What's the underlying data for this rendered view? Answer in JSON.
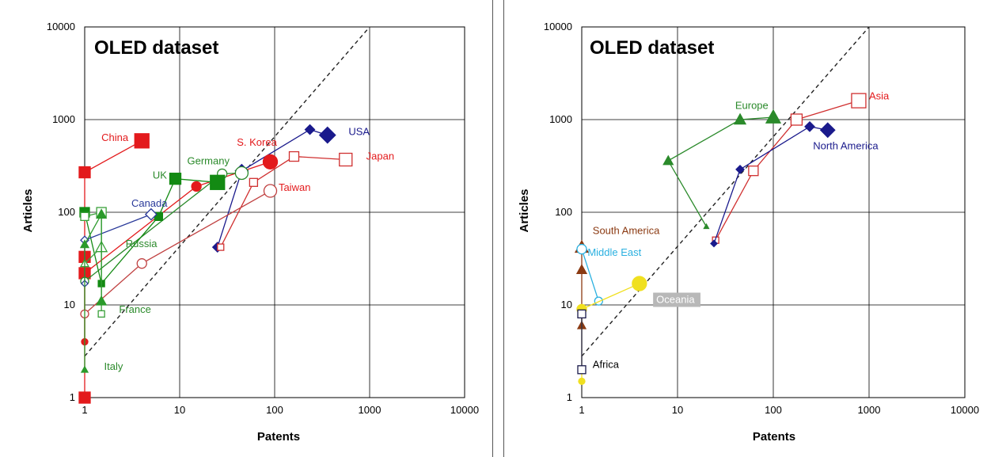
{
  "chart_data": [
    {
      "type": "scatter",
      "title": "OLED dataset",
      "xlabel": "Patents",
      "ylabel": "Articles",
      "xscale": "log",
      "yscale": "log",
      "xlim": [
        1,
        10000
      ],
      "ylim": [
        1,
        10000
      ],
      "x_ticks": [
        "1",
        "10",
        "100",
        "1000",
        "10000"
      ],
      "y_ticks": [
        "1",
        "10",
        "100",
        "1000",
        "10000"
      ],
      "grid": true,
      "reference_line": {
        "type": "diagonal",
        "style": "dashed",
        "points": [
          [
            1,
            2.8
          ],
          [
            1000,
            10000
          ]
        ]
      },
      "series": [
        {
          "name": "USA",
          "color": "#1a1a8c",
          "marker": "diamond",
          "filled": true,
          "points": [
            [
              25,
              42
            ],
            [
              45,
              280
            ],
            [
              235,
              780
            ],
            [
              360,
              680
            ]
          ]
        },
        {
          "name": "China",
          "color": "#e31a1c",
          "marker": "square",
          "filled": true,
          "points": [
            [
              1,
              1
            ],
            [
              1,
              22
            ],
            [
              1,
              33
            ],
            [
              1,
              270
            ],
            [
              4,
              590
            ]
          ]
        },
        {
          "name": "S. Korea",
          "color": "#e31a1c",
          "marker": "circle",
          "filled": true,
          "points": [
            [
              1,
              4
            ],
            [
              1,
              22
            ],
            [
              15,
              190
            ],
            [
              90,
              350
            ]
          ]
        },
        {
          "name": "Japan",
          "color": "#d03030",
          "marker": "square",
          "filled": false,
          "points": [
            [
              27,
              42
            ],
            [
              60,
              210
            ],
            [
              160,
              400
            ],
            [
              560,
              370
            ]
          ]
        },
        {
          "name": "Taiwan",
          "color": "#c04040",
          "marker": "circle",
          "filled": false,
          "points": [
            [
              1,
              8
            ],
            [
              4,
              28
            ],
            [
              90,
              170
            ]
          ]
        },
        {
          "name": "Germany",
          "color": "#2b8a2b",
          "marker": "circle",
          "filled": false,
          "points": [
            [
              1,
              18
            ],
            [
              28,
              260
            ],
            [
              45,
              265
            ]
          ]
        },
        {
          "name": "UK",
          "color": "#138a13",
          "marker": "square",
          "filled": true,
          "points": [
            [
              1,
              100
            ],
            [
              1.5,
              17
            ],
            [
              6,
              90
            ],
            [
              9,
              230
            ],
            [
              25,
              210
            ]
          ]
        },
        {
          "name": "Canada",
          "color": "#2a3a9a",
          "marker": "diamond",
          "filled": false,
          "points": [
            [
              1,
              17
            ],
            [
              1,
              50
            ],
            [
              5,
              95
            ]
          ]
        },
        {
          "name": "Russia",
          "color": "#3aa03a",
          "marker": "triangle",
          "filled": false,
          "points": [
            [
              1,
              28
            ],
            [
              1.5,
              42
            ]
          ]
        },
        {
          "name": "France",
          "color": "#3aa03a",
          "marker": "square",
          "filled": false,
          "points": [
            [
              1,
              90
            ],
            [
              1.5,
              100
            ],
            [
              1.5,
              8
            ]
          ]
        },
        {
          "name": "Italy",
          "color": "#2b9a2b",
          "marker": "triangle",
          "filled": true,
          "points": [
            [
              1,
              2
            ],
            [
              1,
              45
            ],
            [
              1.5,
              95
            ],
            [
              1.5,
              11
            ]
          ]
        }
      ],
      "labels": [
        {
          "text": "USA",
          "x": 600,
          "y": 680,
          "color": "#1a1a8c"
        },
        {
          "text": "China",
          "x": 1.5,
          "y": 590,
          "color": "#e31a1c"
        },
        {
          "text": "S. Korea",
          "x": 40,
          "y": 520,
          "color": "#e31a1c"
        },
        {
          "text": "Germany",
          "x": 12,
          "y": 330,
          "color": "#2b8a2b"
        },
        {
          "text": "Japan",
          "x": 920,
          "y": 370,
          "color": "#e31a1c"
        },
        {
          "text": "UK",
          "x": 5.2,
          "y": 230,
          "color": "#2b8a2b"
        },
        {
          "text": "Canada",
          "x": 3.1,
          "y": 115,
          "color": "#2a3a9a"
        },
        {
          "text": "Taiwan",
          "x": 110,
          "y": 170,
          "color": "#e31a1c"
        },
        {
          "text": "Russia",
          "x": 2.7,
          "y": 42,
          "color": "#2b8a2b"
        },
        {
          "text": "France",
          "x": 2.3,
          "y": 8.2,
          "color": "#2b8a2b"
        },
        {
          "text": "Italy",
          "x": 1.6,
          "y": 2.0,
          "color": "#2b8a2b"
        }
      ]
    },
    {
      "type": "scatter",
      "title": "OLED dataset",
      "xlabel": "Patents",
      "ylabel": "Articles",
      "xscale": "log",
      "yscale": "log",
      "xlim": [
        1,
        10000
      ],
      "ylim": [
        1,
        10000
      ],
      "x_ticks": [
        "1",
        "10",
        "100",
        "1000",
        "10000"
      ],
      "y_ticks": [
        "1",
        "10",
        "100",
        "1000",
        "10000"
      ],
      "grid": true,
      "reference_line": {
        "type": "diagonal",
        "style": "dashed",
        "points": [
          [
            1,
            2.8
          ],
          [
            1000,
            10000
          ]
        ]
      },
      "series": [
        {
          "name": "Europe",
          "color": "#2b8a2b",
          "marker": "triangle",
          "filled": true,
          "points": [
            [
              20,
              70
            ],
            [
              8,
              360
            ],
            [
              45,
              1000
            ],
            [
              100,
              1060
            ]
          ]
        },
        {
          "name": "Asia",
          "color": "#d03030",
          "marker": "square",
          "filled": false,
          "points": [
            [
              25,
              50
            ],
            [
              62,
              280
            ],
            [
              175,
              1000
            ],
            [
              780,
              1600
            ]
          ]
        },
        {
          "name": "North America",
          "color": "#1a1a8c",
          "marker": "diamond",
          "filled": true,
          "points": [
            [
              24,
              46
            ],
            [
              45,
              290
            ],
            [
              240,
              840
            ],
            [
              370,
              770
            ]
          ]
        },
        {
          "name": "South America",
          "color": "#8b3a12",
          "marker": "triangle",
          "filled": true,
          "points": [
            [
              1,
              6
            ],
            [
              1,
              24
            ],
            [
              1,
              42
            ]
          ]
        },
        {
          "name": "Middle East",
          "color": "#2ab0e0",
          "marker": "circle",
          "filled": false,
          "points": [
            [
              1,
              40
            ],
            [
              1.5,
              11
            ]
          ]
        },
        {
          "name": "Oceania",
          "color": "#f0e020",
          "marker": "circle",
          "filled": true,
          "points": [
            [
              1,
              1.5
            ],
            [
              1,
              9
            ],
            [
              4,
              17
            ]
          ]
        },
        {
          "name": "Africa",
          "color": "#1a1a4a",
          "marker": "square",
          "filled": false,
          "points": [
            [
              1,
              2
            ],
            [
              1,
              8
            ]
          ]
        }
      ],
      "labels": [
        {
          "text": "Europe",
          "x": 40,
          "y": 1300,
          "color": "#2b8a2b"
        },
        {
          "text": "Asia",
          "x": 1000,
          "y": 1650,
          "color": "#e31a1c"
        },
        {
          "text": "North America",
          "x": 260,
          "y": 480,
          "color": "#1a1a8c"
        },
        {
          "text": "South America",
          "x": 1.3,
          "y": 58,
          "color": "#8b3a12"
        },
        {
          "text": "Middle East",
          "x": 1.15,
          "y": 34,
          "color": "#2ab0e0"
        },
        {
          "text": "Oceania",
          "x": 6,
          "y": 10.5,
          "color": "#ffffff",
          "bg": "#b8b8b8"
        },
        {
          "text": "Africa",
          "x": 1.3,
          "y": 2.1,
          "color": "#000000"
        }
      ]
    }
  ]
}
